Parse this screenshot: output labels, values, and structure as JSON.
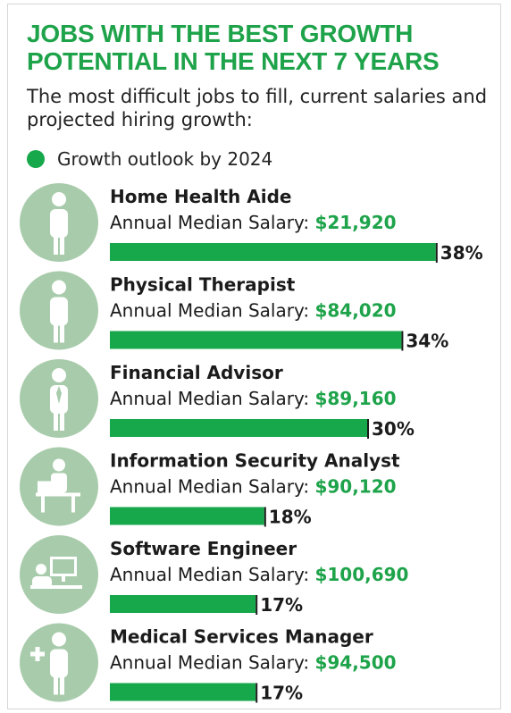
{
  "title": "JOBS WITH THE BEST GROWTH POTENTIAL IN THE NEXT 7 YEARS",
  "subtitle": "The most difficult jobs to fill, current salaries and projected hiring growth:",
  "legend": {
    "label": "Growth outlook by 2024"
  },
  "colors": {
    "accent": "#1ea34a",
    "bar": "#17a84c",
    "icon_circle": "#a8ccab",
    "icon_figure": "#ffffff"
  },
  "chart_data": {
    "type": "bar",
    "orientation": "horizontal",
    "title": "JOBS WITH THE BEST GROWTH POTENTIAL IN THE NEXT 7 YEARS",
    "subtitle": "The most difficult jobs to fill, current salaries and projected hiring growth:",
    "legend": [
      "Growth outlook by 2024"
    ],
    "salary_label": "Annual Median Salary:",
    "categories": [
      "Home Health Aide",
      "Physical Therapist",
      "Financial Advisor",
      "Information Security Analyst",
      "Software Engineer",
      "Medical Services Manager"
    ],
    "salaries": [
      "$21,920",
      "$84,020",
      "$89,160",
      "$90,120",
      "$100,690",
      "$94,500"
    ],
    "values": [
      38,
      34,
      30,
      18,
      17,
      17
    ],
    "value_labels": [
      "38%",
      "34%",
      "30%",
      "18%",
      "17%",
      "17%"
    ],
    "icons": [
      "person-icon",
      "person-icon",
      "businessman-icon",
      "laptop-worker-icon",
      "computer-icon",
      "medical-person-icon"
    ]
  }
}
